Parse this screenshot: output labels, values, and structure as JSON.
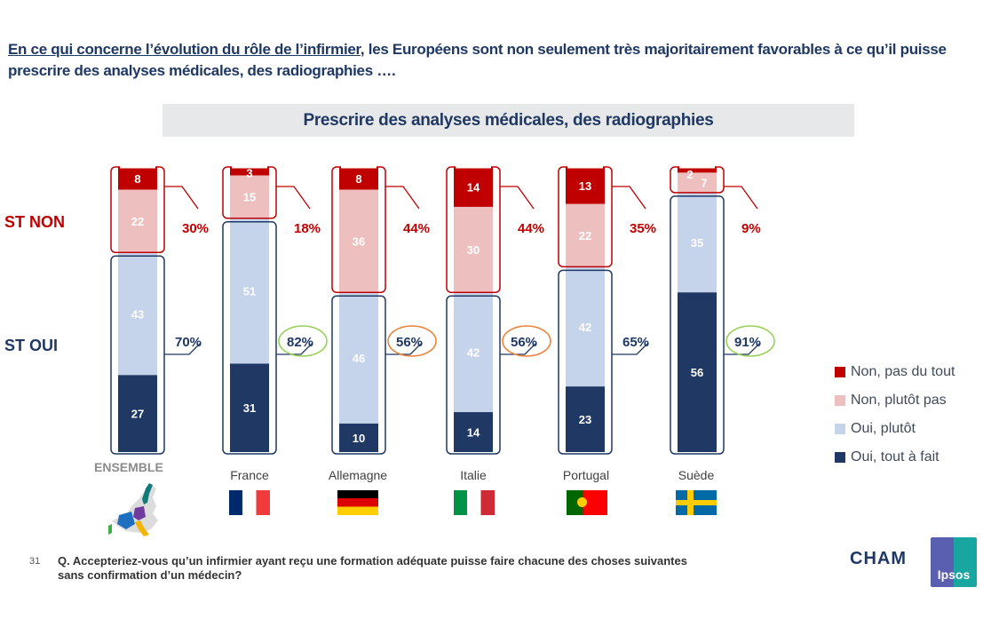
{
  "headline": {
    "underlined": "En ce qui concerne l’évolution du rôle de l’infirmier",
    "rest": ", les Européens sont non seulement très majoritairement favorables à ce qu’il puisse prescrire des analyses médicales, des radiographies …."
  },
  "side_labels": {
    "st_non": "ST NON",
    "st_oui": "ST OUI"
  },
  "colors": {
    "non_pas_du_tout": "#c00000",
    "non_plutot_pas": "#eebfbf",
    "oui_plutot": "#c5d4eb",
    "oui_tout_a_fait": "#1f3864",
    "st_non_text": "#c00000",
    "st_oui_text": "#1f3864",
    "circle_green": "#92d050",
    "circle_orange": "#ed7d31"
  },
  "chart_data": {
    "type": "bar",
    "stacked": true,
    "title": "Prescrire des analyses médicales, des radiographies",
    "categories": [
      "ENSEMBLE",
      "France",
      "Allemagne",
      "Italie",
      "Portugal",
      "Suède"
    ],
    "series": [
      {
        "name": "Non, pas du tout",
        "values": [
          8,
          3,
          8,
          14,
          13,
          2
        ]
      },
      {
        "name": "Non, plutôt pas",
        "values": [
          22,
          15,
          36,
          30,
          22,
          7
        ]
      },
      {
        "name": "Oui, plutôt",
        "values": [
          43,
          51,
          46,
          42,
          42,
          35
        ]
      },
      {
        "name": "Oui, tout à fait",
        "values": [
          27,
          31,
          10,
          14,
          23,
          56
        ]
      }
    ],
    "totals": {
      "st_non": [
        "30%",
        "18%",
        "44%",
        "44%",
        "35%",
        "9%"
      ],
      "st_oui": [
        "70%",
        "82%",
        "56%",
        "56%",
        "65%",
        "91%"
      ]
    },
    "st_oui_highlight": [
      "none",
      "green",
      "orange",
      "orange",
      "none",
      "green"
    ],
    "legend_position": "right",
    "ylim": [
      0,
      100
    ]
  },
  "legend": [
    {
      "label": "Non, pas du tout",
      "color": "#c00000"
    },
    {
      "label": "Non, plutôt pas",
      "color": "#eebfbf"
    },
    {
      "label": "Oui, plutôt",
      "color": "#c5d4eb"
    },
    {
      "label": "Oui, tout à fait",
      "color": "#1f3864"
    }
  ],
  "footer": {
    "page_number": "31",
    "question": "Q. Accepteriez-vous qu’un infirmier ayant reçu une formation adéquate puisse faire chacune des choses suivantes sans confirmation d’un médecin?",
    "logo_cham": "CHAM",
    "logo_ipsos": "Ipsos"
  }
}
